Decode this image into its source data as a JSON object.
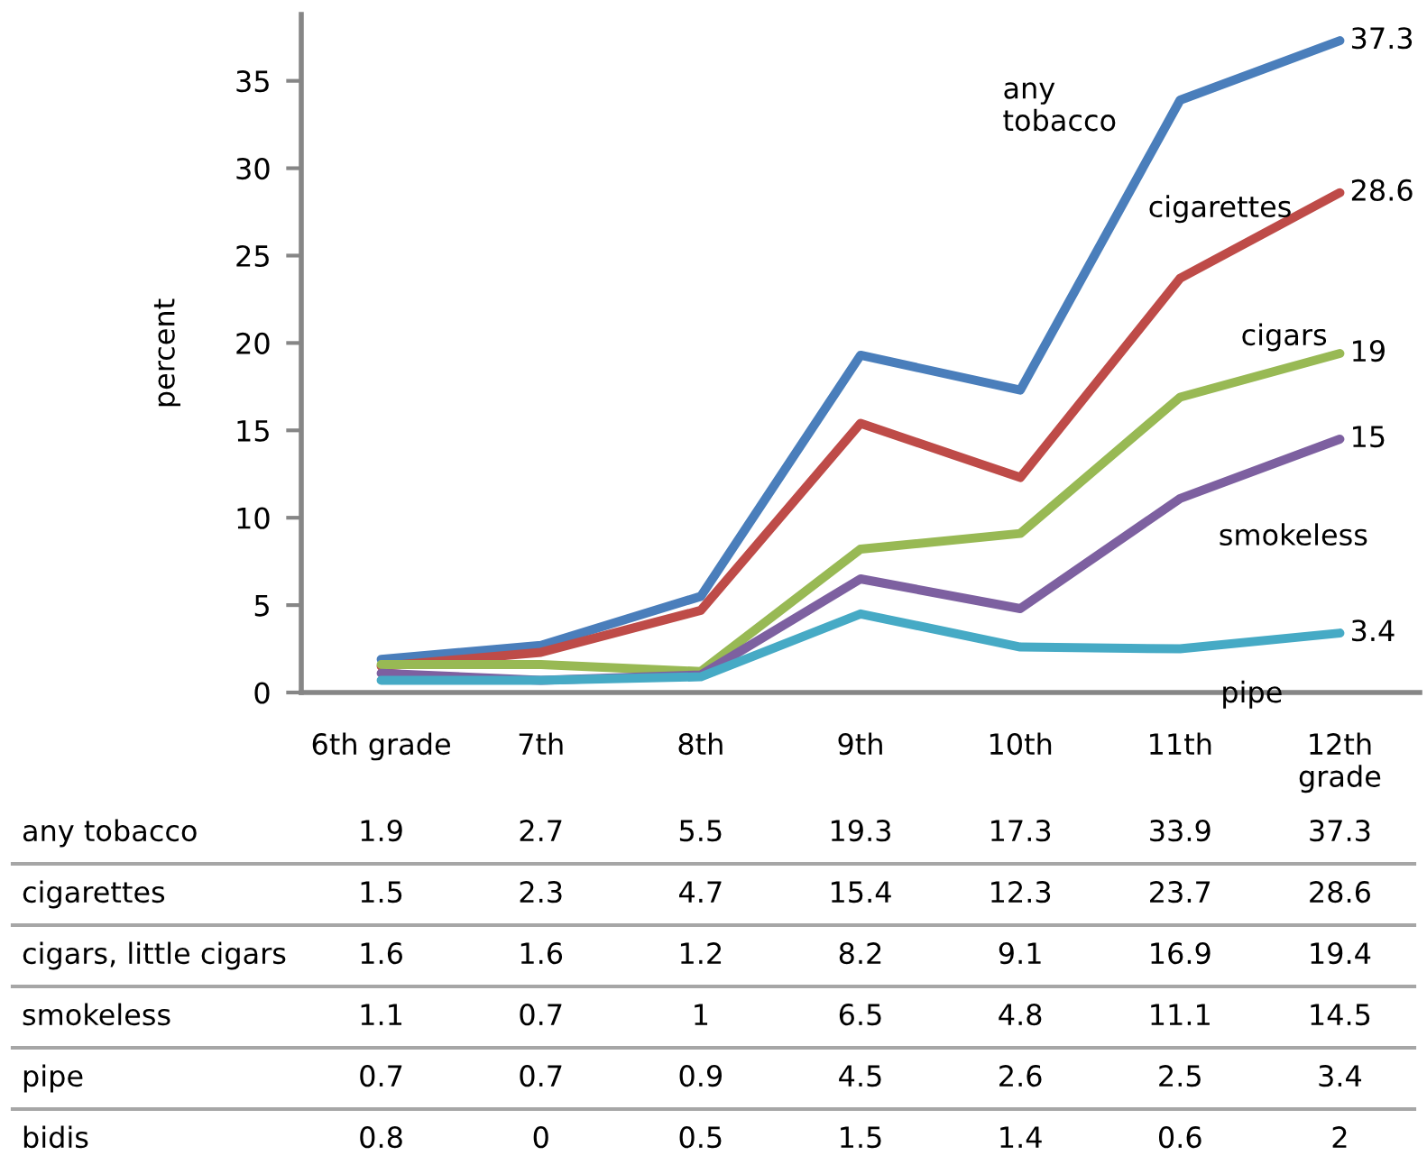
{
  "chart_data": {
    "type": "line",
    "ylabel": "percent",
    "categories": [
      "6th grade",
      "7th",
      "8th",
      "9th",
      "10th",
      "11th",
      "12th grade"
    ],
    "series": [
      {
        "name": "any tobacco",
        "color": "#4a7ebb",
        "values": [
          1.9,
          2.7,
          5.5,
          19.3,
          17.3,
          33.9,
          37.3
        ],
        "value_labels": [
          "1.9",
          "2.7",
          "5.5",
          "19.3",
          "17.3",
          "33.9",
          "37.3"
        ]
      },
      {
        "name": "cigarettes",
        "color": "#be4b48",
        "values": [
          1.5,
          2.3,
          4.7,
          15.4,
          12.3,
          23.7,
          28.6
        ],
        "value_labels": [
          "1.5",
          "2.3",
          "4.7",
          "15.4",
          "12.3",
          "23.7",
          "28.6"
        ]
      },
      {
        "name": "cigars",
        "color": "#98b954",
        "values": [
          1.6,
          1.6,
          1.2,
          8.2,
          9.1,
          16.9,
          19.4
        ],
        "value_labels": [
          "1.6",
          "1.6",
          "1.2",
          "8.2",
          "9.1",
          "16.9",
          "19.4"
        ]
      },
      {
        "name": "smokeless",
        "color": "#7d60a0",
        "values": [
          1.1,
          0.7,
          1,
          6.5,
          4.8,
          11.1,
          14.5
        ],
        "value_labels": [
          "1.1",
          "0.7",
          "1",
          "6.5",
          "4.8",
          "11.1",
          "14.5"
        ]
      },
      {
        "name": "pipe",
        "color": "#46aac5",
        "values": [
          0.7,
          0.7,
          0.9,
          4.5,
          2.6,
          2.5,
          3.4
        ],
        "value_labels": [
          "0.7",
          "0.7",
          "0.9",
          "4.5",
          "2.6",
          "2.5",
          "3.4"
        ]
      }
    ],
    "ylim": [
      0,
      38.8
    ],
    "yticks": [
      0,
      5,
      10,
      15,
      20,
      25,
      30,
      35
    ],
    "annotations": [
      "any tobacco",
      "cigarettes",
      "cigars, little cigars",
      "smokeless",
      "pipe",
      "bidis",
      "0.8",
      "0",
      "0.5",
      "1.5",
      "1.4",
      "0.6",
      "2",
      {
        "text": "37.3",
        "x": "12th grade",
        "y": 37.3
      },
      {
        "text": "28.6",
        "x": "12th grade",
        "y": 28.6
      },
      {
        "text": "19",
        "x": "12th grade",
        "y": 19.4
      },
      {
        "text": "15",
        "x": "12th grade",
        "y": 14.5
      },
      {
        "text": "3.4",
        "x": "12th grade",
        "y": 3.4
      }
    ],
    "grid": false,
    "legend": false,
    "marker": "none",
    "line_style": "solid"
  }
}
